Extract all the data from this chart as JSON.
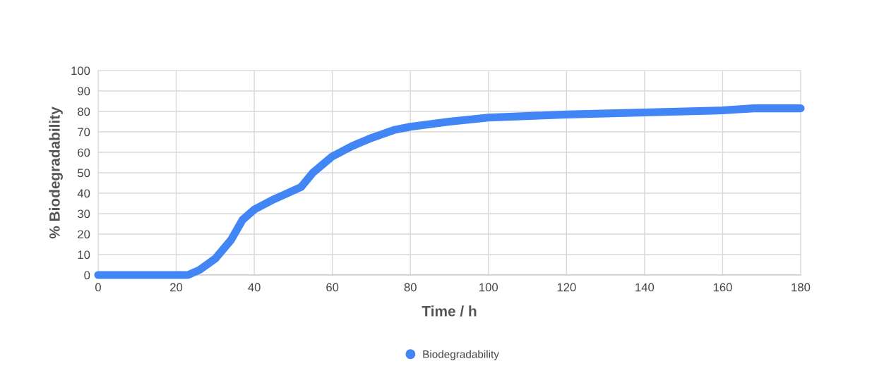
{
  "chart_data": {
    "type": "line",
    "xlabel": "Time / h",
    "ylabel": "% Biodegradability",
    "x": [
      0,
      23,
      26,
      30,
      34,
      37,
      40,
      45,
      52,
      55,
      60,
      65,
      70,
      76,
      80,
      90,
      100,
      120,
      140,
      160,
      168,
      180
    ],
    "series": [
      {
        "name": "Biodegradability",
        "color": "#4285f4",
        "values": [
          0,
          0,
          2.5,
          8,
          17,
          27,
          32,
          37,
          43,
          50,
          58,
          63,
          67,
          71,
          72.5,
          75,
          77,
          78.5,
          79.5,
          80.5,
          81.5,
          81.5
        ]
      }
    ],
    "xlim": [
      0,
      180
    ],
    "xticks": [
      0,
      20,
      40,
      60,
      80,
      100,
      120,
      140,
      160,
      180
    ],
    "ylim": [
      0,
      100
    ],
    "yticks": [
      0,
      10,
      20,
      30,
      40,
      50,
      60,
      70,
      80,
      90,
      100
    ],
    "grid": true,
    "legend": "bottom",
    "marker": "none",
    "line_style": "solid"
  }
}
